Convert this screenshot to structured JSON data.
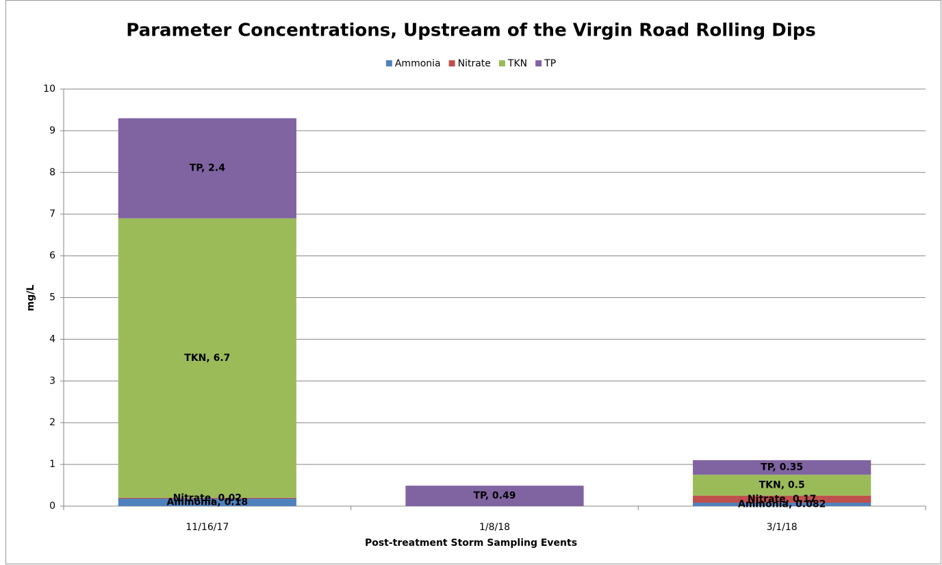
{
  "chart_data": {
    "type": "bar",
    "stacked": true,
    "title": "Parameter Concentrations, Upstream of the Virgin Road Rolling Dips",
    "xlabel": "Post-treatment Storm Sampling Events",
    "ylabel": "mg/L",
    "categories": [
      "11/16/17",
      "1/8/18",
      "3/1/18"
    ],
    "series": [
      {
        "name": "Ammonia",
        "color": "#4f81bd",
        "values": [
          0.18,
          null,
          0.082
        ],
        "value_labels": [
          "Ammonia, 0.18",
          null,
          "Ammonia, 0.082"
        ]
      },
      {
        "name": "Nitrate",
        "color": "#c0504d",
        "values": [
          0.02,
          null,
          0.17
        ],
        "value_labels": [
          "Nitrate, 0.02",
          null,
          "Nitrate, 0.17"
        ]
      },
      {
        "name": "TKN",
        "color": "#9bbb59",
        "values": [
          6.7,
          null,
          0.5
        ],
        "value_labels": [
          "TKN, 6.7",
          null,
          "TKN, 0.5"
        ]
      },
      {
        "name": "TP",
        "color": "#8064a2",
        "values": [
          2.4,
          0.49,
          0.35
        ],
        "value_labels": [
          "TP, 2.4",
          "TP, 0.49",
          "TP, 0.35"
        ]
      }
    ],
    "ylim": [
      0,
      10
    ],
    "yticks": [
      0,
      1,
      2,
      3,
      4,
      5,
      6,
      7,
      8,
      9,
      10
    ],
    "grid": true,
    "legend": "top"
  }
}
